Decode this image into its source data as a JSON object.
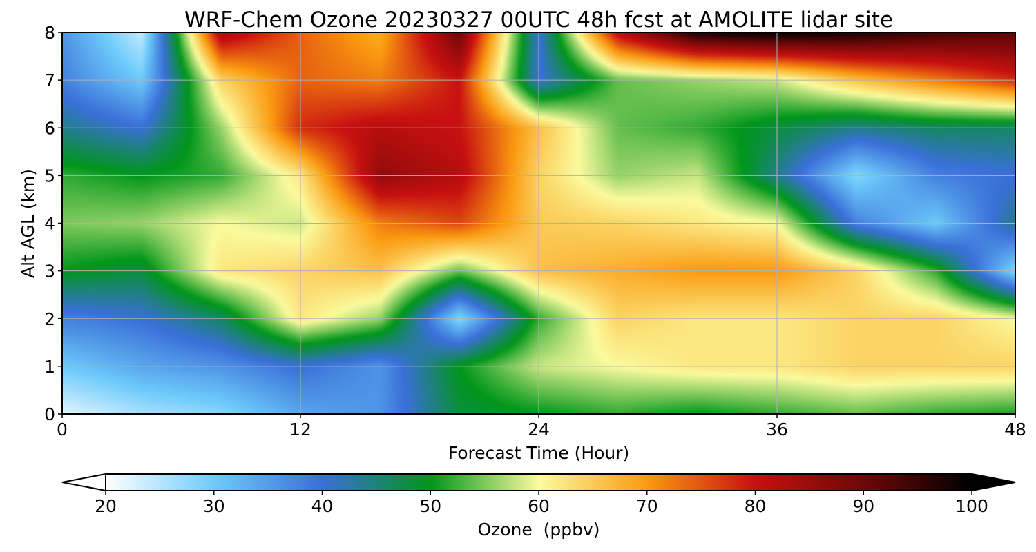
{
  "chart_data": {
    "type": "heatmap",
    "title": "WRF-Chem Ozone  20230327 00UTC 48h fcst at AMOLITE lidar site",
    "xlabel": "Forecast Time (Hour)",
    "ylabel": "Alt AGL (km)",
    "xlim": [
      0,
      48
    ],
    "ylim": [
      0,
      8
    ],
    "xticks": [
      0,
      12,
      24,
      36,
      48
    ],
    "yticks": [
      0,
      1,
      2,
      3,
      4,
      5,
      6,
      7,
      8
    ],
    "grid": true,
    "colorbar": {
      "label": "Ozone  (ppbv)",
      "orientation": "horizontal",
      "range": [
        20,
        100
      ],
      "ticks": [
        20,
        30,
        40,
        50,
        60,
        70,
        80,
        90,
        100
      ],
      "extend": "both",
      "stops": [
        {
          "v": 20,
          "c": "#ffffff"
        },
        {
          "v": 30,
          "c": "#6ecbfb"
        },
        {
          "v": 40,
          "c": "#3a6fd8"
        },
        {
          "v": 50,
          "c": "#00961a"
        },
        {
          "v": 60,
          "c": "#fbfb9e"
        },
        {
          "v": 70,
          "c": "#fb9a10"
        },
        {
          "v": 80,
          "c": "#c81010"
        },
        {
          "v": 90,
          "c": "#6e0808"
        },
        {
          "v": 100,
          "c": "#000000"
        }
      ]
    },
    "x": [
      0,
      4,
      8,
      12,
      16,
      20,
      24,
      28,
      32,
      36,
      40,
      44,
      48
    ],
    "y": [
      0,
      1,
      2,
      3,
      4,
      5,
      6,
      7,
      8
    ],
    "values": [
      [
        22,
        26,
        28,
        34,
        36,
        48,
        50,
        52,
        50,
        52,
        54,
        52,
        51
      ],
      [
        30,
        34,
        36,
        40,
        36,
        50,
        58,
        60,
        62,
        62,
        64,
        64,
        64
      ],
      [
        38,
        40,
        46,
        62,
        56,
        28,
        52,
        64,
        62,
        62,
        64,
        64,
        60
      ],
      [
        50,
        48,
        62,
        64,
        66,
        54,
        66,
        68,
        70,
        70,
        64,
        52,
        28
      ],
      [
        55,
        56,
        60,
        58,
        72,
        76,
        65,
        64,
        62,
        60,
        38,
        30,
        44
      ],
      [
        52,
        50,
        52,
        62,
        86,
        82,
        64,
        56,
        58,
        44,
        28,
        38,
        40
      ],
      [
        44,
        40,
        56,
        78,
        82,
        80,
        66,
        54,
        52,
        48,
        44,
        46,
        46
      ],
      [
        38,
        30,
        64,
        74,
        72,
        80,
        40,
        54,
        56,
        58,
        66,
        72,
        78
      ],
      [
        36,
        24,
        84,
        74,
        68,
        90,
        40,
        82,
        98,
        100,
        98,
        94,
        92
      ]
    ]
  }
}
